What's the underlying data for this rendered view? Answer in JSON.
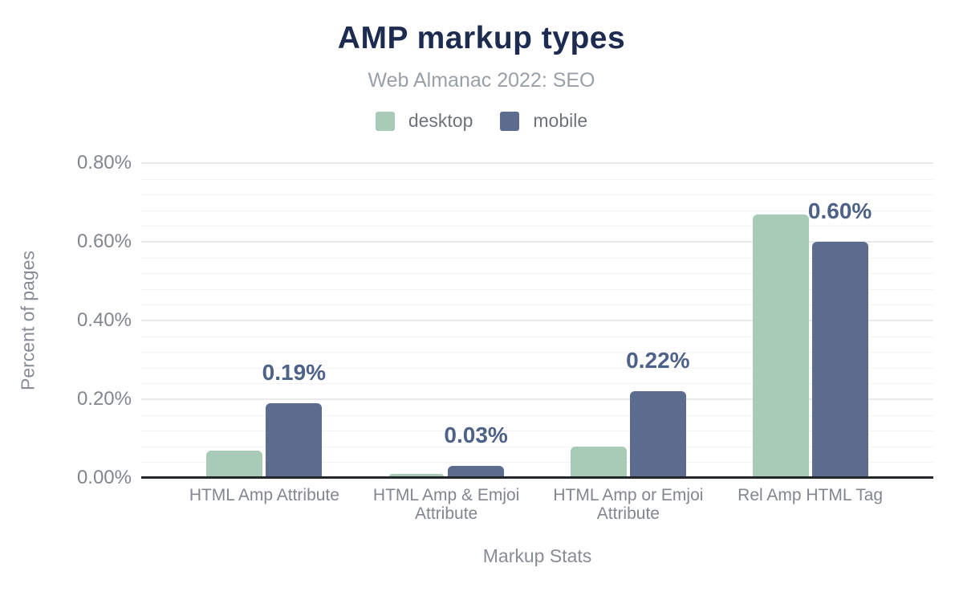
{
  "header": {
    "title": "AMP markup types",
    "subtitle": "Web Almanac 2022: SEO"
  },
  "legend": {
    "position": "top",
    "items": [
      {
        "name": "desktop",
        "label": "desktop",
        "color": "#a8cbb8"
      },
      {
        "name": "mobile",
        "label": "mobile",
        "color": "#5b6c8f"
      }
    ]
  },
  "chart_data": {
    "type": "bar",
    "title": "AMP markup types",
    "subtitle": "Web Almanac 2022: SEO",
    "xlabel": "Markup Stats",
    "ylabel": "Percent of pages",
    "categories": [
      "HTML Amp Attribute",
      "HTML Amp & Emjoi Attribute",
      "HTML Amp or Emjoi Attribute",
      "Rel Amp HTML Tag"
    ],
    "series": [
      {
        "name": "desktop",
        "color": "#a8cbb8",
        "values": [
          0.07,
          0.01,
          0.08,
          0.67
        ]
      },
      {
        "name": "mobile",
        "color": "#5b6c8f",
        "values": [
          0.19,
          0.03,
          0.22,
          0.6
        ],
        "data_labels": [
          "0.19%",
          "0.03%",
          "0.22%",
          "0.60%"
        ]
      }
    ],
    "ylim": [
      0,
      0.8
    ],
    "yticks": [
      {
        "value": 0.0,
        "label": "0.00%"
      },
      {
        "value": 0.2,
        "label": "0.20%"
      },
      {
        "value": 0.4,
        "label": "0.40%"
      },
      {
        "value": 0.6,
        "label": "0.60%"
      },
      {
        "value": 0.8,
        "label": "0.80%"
      }
    ],
    "grid": {
      "show": true,
      "major_step": 0.2,
      "minor_step": 0.04
    },
    "legend_position": "top",
    "value_unit": "percent"
  },
  "colors": {
    "title": "#1c2b4f",
    "subtitle": "#9aa0a7",
    "legend_text": "#6d727b",
    "tick_text": "#82868d",
    "axis_title_text": "#888c93",
    "axis_line": "#23262b",
    "grid_major": "#eaeaea",
    "grid_minor": "#f3f3f3",
    "annotation": "#4e6287",
    "background": "#ffffff"
  }
}
